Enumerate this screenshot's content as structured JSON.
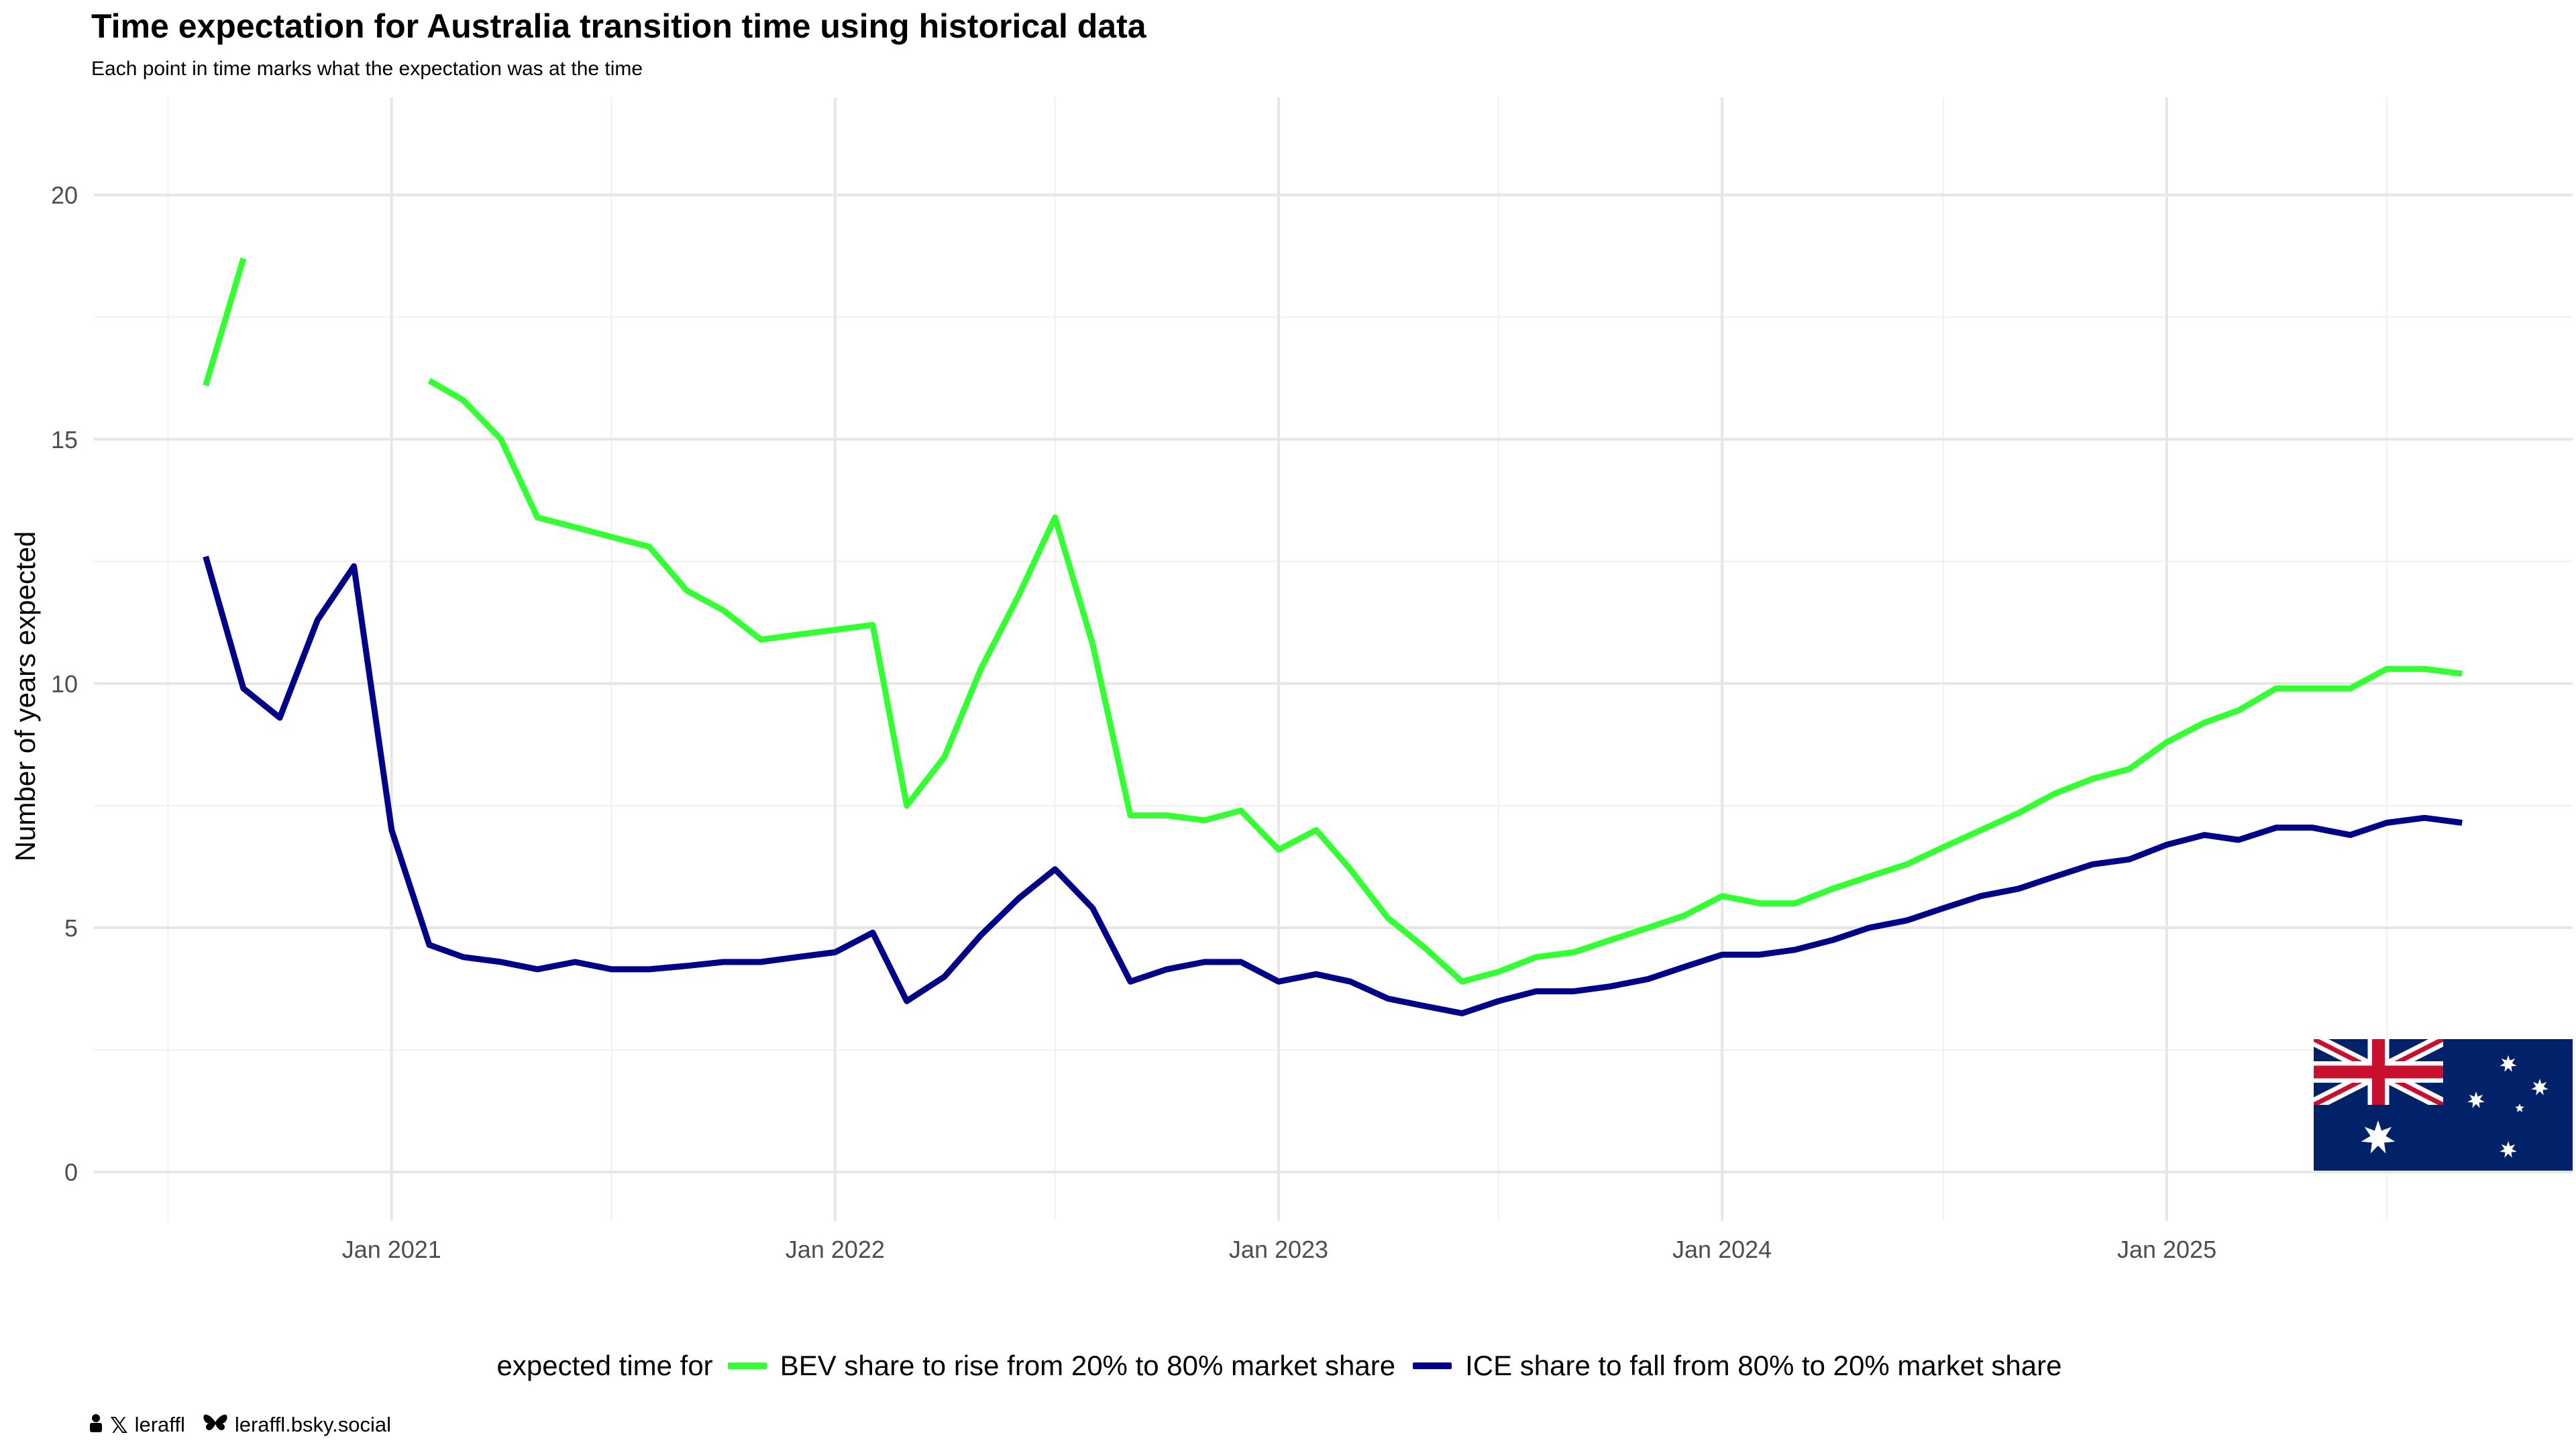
{
  "chart_data": {
    "type": "line",
    "title": "Time expectation for Australia transition time using historical data",
    "subtitle": "Each point in time marks what the expectation was at the time",
    "xlabel": "",
    "ylabel": "Number of years expected",
    "ylim": [
      -1,
      22
    ],
    "yticks": [
      0,
      5,
      10,
      15,
      20
    ],
    "xlim": [
      "2020-05-01",
      "2025-12-01"
    ],
    "xticks": [
      {
        "label": "Jan 2021",
        "date": "2021-01-01"
      },
      {
        "label": "Jan 2022",
        "date": "2022-01-01"
      },
      {
        "label": "Jan 2023",
        "date": "2023-01-01"
      },
      {
        "label": "Jan 2024",
        "date": "2024-01-01"
      },
      {
        "label": "Jan 2025",
        "date": "2025-01-01"
      }
    ],
    "grid": true,
    "legend_title": "expected time for",
    "legend_position": "bottom",
    "series": [
      {
        "name": "BEV share to rise from 20% to 80% market share",
        "color": "#33ff33",
        "points": [
          [
            "2020-08-01",
            16.1
          ],
          [
            "2020-09-01",
            18.7
          ],
          [
            "2020-10-01",
            null
          ],
          [
            "2020-11-01",
            null
          ],
          [
            "2020-12-01",
            null
          ],
          [
            "2021-01-01",
            null
          ],
          [
            "2021-02-01",
            16.2
          ],
          [
            "2021-03-01",
            15.8
          ],
          [
            "2021-04-01",
            15.0
          ],
          [
            "2021-05-01",
            13.4
          ],
          [
            "2021-06-01",
            13.2
          ],
          [
            "2021-07-01",
            13.0
          ],
          [
            "2021-08-01",
            12.8
          ],
          [
            "2021-09-01",
            11.9
          ],
          [
            "2021-10-01",
            11.5
          ],
          [
            "2021-11-01",
            10.9
          ],
          [
            "2021-12-01",
            11.0
          ],
          [
            "2022-01-01",
            11.1
          ],
          [
            "2022-02-01",
            11.2
          ],
          [
            "2022-03-01",
            7.5
          ],
          [
            "2022-04-01",
            8.5
          ],
          [
            "2022-05-01",
            10.3
          ],
          [
            "2022-06-01",
            11.8
          ],
          [
            "2022-07-01",
            13.4
          ],
          [
            "2022-08-01",
            10.8
          ],
          [
            "2022-09-01",
            7.3
          ],
          [
            "2022-10-01",
            7.3
          ],
          [
            "2022-11-01",
            7.2
          ],
          [
            "2022-12-01",
            7.4
          ],
          [
            "2023-01-01",
            6.6
          ],
          [
            "2023-02-01",
            7.0
          ],
          [
            "2023-03-01",
            6.2
          ],
          [
            "2023-04-01",
            5.2
          ],
          [
            "2023-05-01",
            4.6
          ],
          [
            "2023-06-01",
            3.9
          ],
          [
            "2023-07-01",
            4.1
          ],
          [
            "2023-08-01",
            4.4
          ],
          [
            "2023-09-01",
            4.5
          ],
          [
            "2023-10-01",
            4.75
          ],
          [
            "2023-11-01",
            5.0
          ],
          [
            "2023-12-01",
            5.25
          ],
          [
            "2024-01-01",
            5.65
          ],
          [
            "2024-02-01",
            5.5
          ],
          [
            "2024-03-01",
            5.5
          ],
          [
            "2024-04-01",
            5.8
          ],
          [
            "2024-05-01",
            6.05
          ],
          [
            "2024-06-01",
            6.3
          ],
          [
            "2024-07-01",
            6.65
          ],
          [
            "2024-08-01",
            7.0
          ],
          [
            "2024-09-01",
            7.35
          ],
          [
            "2024-10-01",
            7.75
          ],
          [
            "2024-11-01",
            8.05
          ],
          [
            "2024-12-01",
            8.25
          ],
          [
            "2025-01-01",
            8.8
          ],
          [
            "2025-02-01",
            9.2
          ],
          [
            "2025-03-01",
            9.45
          ],
          [
            "2025-04-01",
            9.9
          ],
          [
            "2025-05-01",
            9.9
          ],
          [
            "2025-06-01",
            9.9
          ],
          [
            "2025-07-01",
            10.3
          ],
          [
            "2025-08-01",
            10.3
          ],
          [
            "2025-09-01",
            10.2
          ]
        ]
      },
      {
        "name": "ICE share to fall from 80% to 20% market share",
        "color": "#000088",
        "points": [
          [
            "2020-08-01",
            12.6
          ],
          [
            "2020-09-01",
            9.9
          ],
          [
            "2020-10-01",
            9.3
          ],
          [
            "2020-11-01",
            11.3
          ],
          [
            "2020-12-01",
            12.4
          ],
          [
            "2021-01-01",
            7.0
          ],
          [
            "2021-02-01",
            4.65
          ],
          [
            "2021-03-01",
            4.4
          ],
          [
            "2021-04-01",
            4.3
          ],
          [
            "2021-05-01",
            4.15
          ],
          [
            "2021-06-01",
            4.3
          ],
          [
            "2021-07-01",
            4.15
          ],
          [
            "2021-08-01",
            4.15
          ],
          [
            "2021-09-01",
            4.22
          ],
          [
            "2021-10-01",
            4.3
          ],
          [
            "2021-11-01",
            4.3
          ],
          [
            "2021-12-01",
            4.4
          ],
          [
            "2022-01-01",
            4.5
          ],
          [
            "2022-02-01",
            4.9
          ],
          [
            "2022-03-01",
            3.5
          ],
          [
            "2022-04-01",
            4.0
          ],
          [
            "2022-05-01",
            4.85
          ],
          [
            "2022-06-01",
            5.6
          ],
          [
            "2022-07-01",
            6.2
          ],
          [
            "2022-08-01",
            5.4
          ],
          [
            "2022-09-01",
            3.9
          ],
          [
            "2022-10-01",
            4.15
          ],
          [
            "2022-11-01",
            4.3
          ],
          [
            "2022-12-01",
            4.3
          ],
          [
            "2023-01-01",
            3.9
          ],
          [
            "2023-02-01",
            4.05
          ],
          [
            "2023-03-01",
            3.9
          ],
          [
            "2023-04-01",
            3.55
          ],
          [
            "2023-05-01",
            3.4
          ],
          [
            "2023-06-01",
            3.25
          ],
          [
            "2023-07-01",
            3.5
          ],
          [
            "2023-08-01",
            3.7
          ],
          [
            "2023-09-01",
            3.7
          ],
          [
            "2023-10-01",
            3.8
          ],
          [
            "2023-11-01",
            3.95
          ],
          [
            "2023-12-01",
            4.2
          ],
          [
            "2024-01-01",
            4.45
          ],
          [
            "2024-02-01",
            4.45
          ],
          [
            "2024-03-01",
            4.55
          ],
          [
            "2024-04-01",
            4.75
          ],
          [
            "2024-05-01",
            5.0
          ],
          [
            "2024-06-01",
            5.15
          ],
          [
            "2024-07-01",
            5.4
          ],
          [
            "2024-08-01",
            5.65
          ],
          [
            "2024-09-01",
            5.8
          ],
          [
            "2024-10-01",
            6.05
          ],
          [
            "2024-11-01",
            6.3
          ],
          [
            "2024-12-01",
            6.4
          ],
          [
            "2025-01-01",
            6.7
          ],
          [
            "2025-02-01",
            6.9
          ],
          [
            "2025-03-01",
            6.8
          ],
          [
            "2025-04-01",
            7.05
          ],
          [
            "2025-05-01",
            7.05
          ],
          [
            "2025-06-01",
            6.9
          ],
          [
            "2025-07-01",
            7.15
          ],
          [
            "2025-08-01",
            7.25
          ],
          [
            "2025-09-01",
            7.15
          ]
        ]
      }
    ]
  },
  "credits": {
    "x_handle": "leraffl",
    "bluesky_handle": "leraffl.bsky.social"
  },
  "icons": {
    "x_logo": "x-logo-icon",
    "bluesky": "butterfly-icon",
    "person": "person-icon",
    "flag": "australia-flag"
  }
}
